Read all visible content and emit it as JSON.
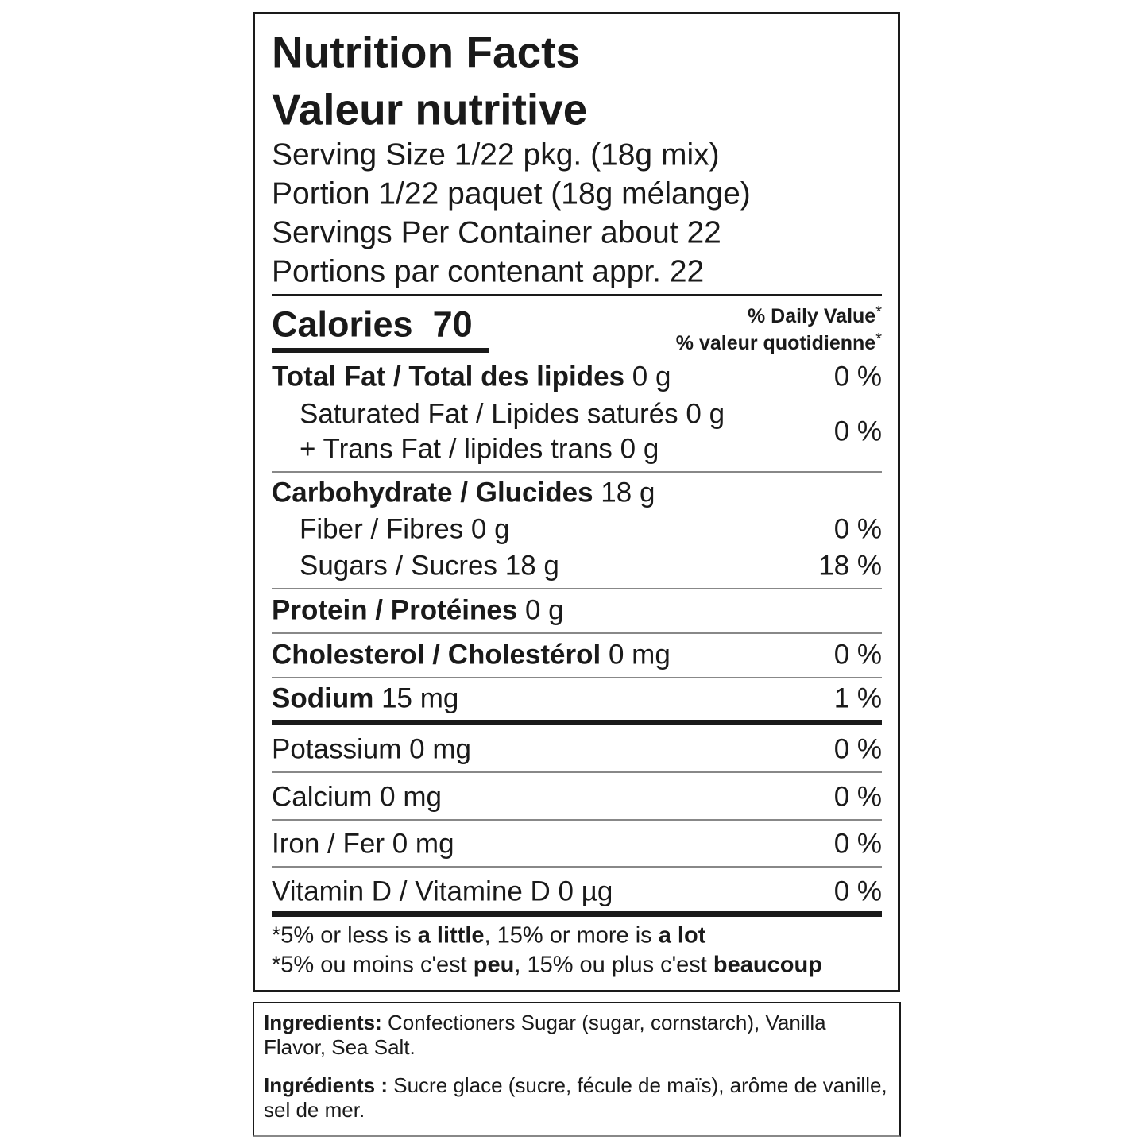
{
  "header": {
    "title_en": "Nutrition Facts",
    "title_fr": "Valeur nutritive"
  },
  "serving": [
    "Serving Size 1/22 pkg. (18g mix)",
    "Portion 1/22 paquet (18g mélange)",
    "Servings Per Container about 22",
    "Portions par contenant appr. 22"
  ],
  "calories": {
    "label": "Calories",
    "value": 70
  },
  "daily_value": {
    "en": "% Daily Value",
    "fr": "% valeur quotidienne",
    "asterisk": "*"
  },
  "nutrients": [
    {
      "name": "Total Fat / Total des lipides",
      "amount": "0 g",
      "dv": "0 %"
    },
    {
      "name": "Saturated Fat / Lipides saturés",
      "amount": "0 g",
      "name2": "+ Trans Fat / lipides trans",
      "amount2": "0 g",
      "dv": "0 %"
    },
    {
      "name": "Carbohydrate / Glucides",
      "amount": "18 g"
    },
    {
      "name": "Fiber / Fibres",
      "amount": "0 g",
      "dv": "0 %"
    },
    {
      "name": "Sugars / Sucres",
      "amount": "18 g",
      "dv": "18 %"
    },
    {
      "name": "Protein / Protéines",
      "amount": "0 g"
    },
    {
      "name": "Cholesterol / Cholestérol",
      "amount": "0 mg",
      "dv": "0 %"
    },
    {
      "name": "Sodium",
      "amount": "15 mg",
      "dv": "1 %"
    },
    {
      "name": "Potassium",
      "amount": "0 mg",
      "dv": "0 %"
    },
    {
      "name": "Calcium",
      "amount": "0 mg",
      "dv": "0 %"
    },
    {
      "name": "Iron / Fer",
      "amount": "0 mg",
      "dv": "0 %"
    },
    {
      "name": "Vitamin D / Vitamine D",
      "amount": "0 µg",
      "dv": "0 %"
    }
  ],
  "footnote": {
    "en": [
      "*5% or less is",
      "a little",
      ", 15% or more is",
      "a lot"
    ],
    "fr": [
      "*5% ou moins c'est",
      "peu",
      ", 15% ou plus c'est",
      "beaucoup"
    ]
  },
  "ingredients": {
    "en": {
      "label": "Ingredients:",
      "text": "Confectioners Sugar (sugar, cornstarch), Vanilla Flavor, Sea Salt."
    },
    "fr": {
      "label": "Ingrédients :",
      "text": "Sucre glace (sucre, fécule de maïs), arôme de vanille, sel de mer."
    }
  }
}
